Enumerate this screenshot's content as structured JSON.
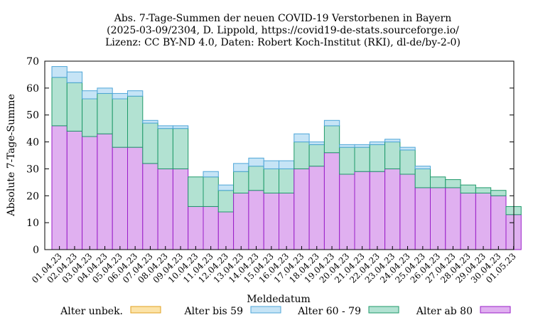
{
  "chart_data": {
    "type": "bar",
    "stacked": true,
    "title": [
      "Abs. 7-Tage-Summen der neuen COVID-19 Verstorbenen in Bayern",
      "(2025-03-09/2304, D. Lippold, https://covid19-de-stats.sourceforge.io/",
      "Lizenz: CC BY-ND 4.0, Daten: Robert Koch-Institut (RKI), dl-de/by-2-0)"
    ],
    "xlabel": "Meldedatum",
    "ylabel": "Absolute 7-Tage-Summe",
    "ylim": [
      0,
      70
    ],
    "yticks": [
      0,
      10,
      20,
      30,
      40,
      50,
      60,
      70
    ],
    "grid": false,
    "legend_position": "bottom",
    "categories": [
      "01.04.23",
      "02.04.23",
      "03.04.23",
      "04.04.23",
      "05.04.23",
      "06.04.23",
      "07.04.23",
      "08.04.23",
      "09.04.23",
      "10.04.23",
      "11.04.23",
      "12.04.23",
      "13.04.23",
      "14.04.23",
      "15.04.23",
      "16.04.23",
      "17.04.23",
      "18.04.23",
      "19.04.23",
      "20.04.23",
      "21.04.23",
      "22.04.23",
      "23.04.23",
      "24.04.23",
      "25.04.23",
      "26.04.23",
      "27.04.23",
      "28.04.23",
      "29.04.23",
      "30.04.23",
      "01.05.23"
    ],
    "series": [
      {
        "name": "Alter ab 80",
        "fill": "#e0b0f0",
        "stroke": "#9a1ec8",
        "values": [
          46,
          44,
          42,
          43,
          38,
          38,
          32,
          30,
          30,
          16,
          16,
          14,
          21,
          22,
          21,
          21,
          30,
          31,
          36,
          28,
          29,
          29,
          30,
          28,
          23,
          23,
          23,
          21,
          21,
          20,
          13
        ]
      },
      {
        "name": "Alter 60 - 79",
        "fill": "#b2e2d2",
        "stroke": "#1f9a6a",
        "values": [
          18,
          18,
          14,
          15,
          18,
          19,
          15,
          15,
          15,
          11,
          11,
          8,
          8,
          9,
          9,
          9,
          10,
          8,
          10,
          10,
          9,
          10,
          10,
          9,
          7,
          4,
          3,
          3,
          2,
          2,
          3
        ]
      },
      {
        "name": "Alter bis 59",
        "fill": "#c6e4f6",
        "stroke": "#4ea6d8",
        "values": [
          4,
          4,
          3,
          2,
          2,
          2,
          1,
          1,
          1,
          0,
          2,
          2,
          3,
          3,
          3,
          3,
          3,
          1,
          2,
          1,
          1,
          1,
          1,
          1,
          1,
          0,
          0,
          0,
          0,
          0,
          0
        ]
      },
      {
        "name": "Alter unbek.",
        "fill": "#fce3a8",
        "stroke": "#e0a020",
        "values": [
          0,
          0,
          0,
          0,
          0,
          0,
          0,
          0,
          0,
          0,
          0,
          0,
          0,
          0,
          0,
          0,
          0,
          0,
          0,
          0,
          0,
          0,
          0,
          0,
          0,
          0,
          0,
          0,
          0,
          0,
          0
        ]
      }
    ],
    "legend_order": [
      "Alter unbek.",
      "Alter bis 59",
      "Alter 60 - 79",
      "Alter ab 80"
    ]
  }
}
